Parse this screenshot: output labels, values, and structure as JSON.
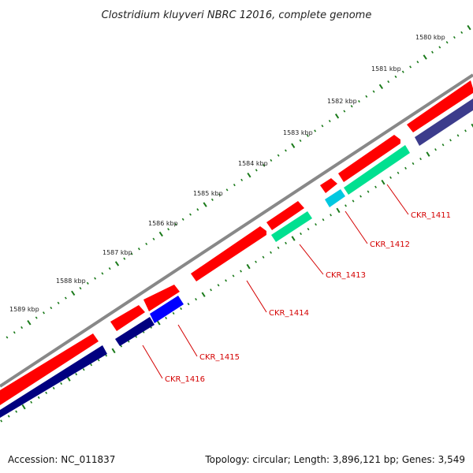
{
  "title": "Clostridium kluyveri NBRC 12016, complete genome",
  "footer": {
    "accession": "Accession: NC_011837",
    "summary": "Topology: circular; Length: 3,896,121 bp; Genes: 3,549"
  },
  "ticks": [
    {
      "label": "1580 kbp"
    },
    {
      "label": "1581 kbp"
    },
    {
      "label": "1582 kbp"
    },
    {
      "label": "1583 kbp"
    },
    {
      "label": "1584 kbp"
    },
    {
      "label": "1585 kbp"
    },
    {
      "label": "1586 kbp"
    },
    {
      "label": "1587 kbp"
    },
    {
      "label": "1588 kbp"
    },
    {
      "label": "1589 kbp"
    }
  ],
  "genes": [
    {
      "label": "CKR_1411"
    },
    {
      "label": "CKR_1412"
    },
    {
      "label": "CKR_1413"
    },
    {
      "label": "CKR_1414"
    },
    {
      "label": "CKR_1415"
    },
    {
      "label": "CKR_1416"
    }
  ],
  "colors": {
    "backbone": "#888888",
    "feature_red": "#ff0000",
    "cds_navy": "#000080",
    "cds_slate": "#3c3c8c",
    "cds_blue": "#0000ff",
    "rna_green": "#00e090",
    "rna_cyan": "#00c8e0",
    "label_red": "#d40000",
    "tick_green": "#1a7a1a"
  }
}
